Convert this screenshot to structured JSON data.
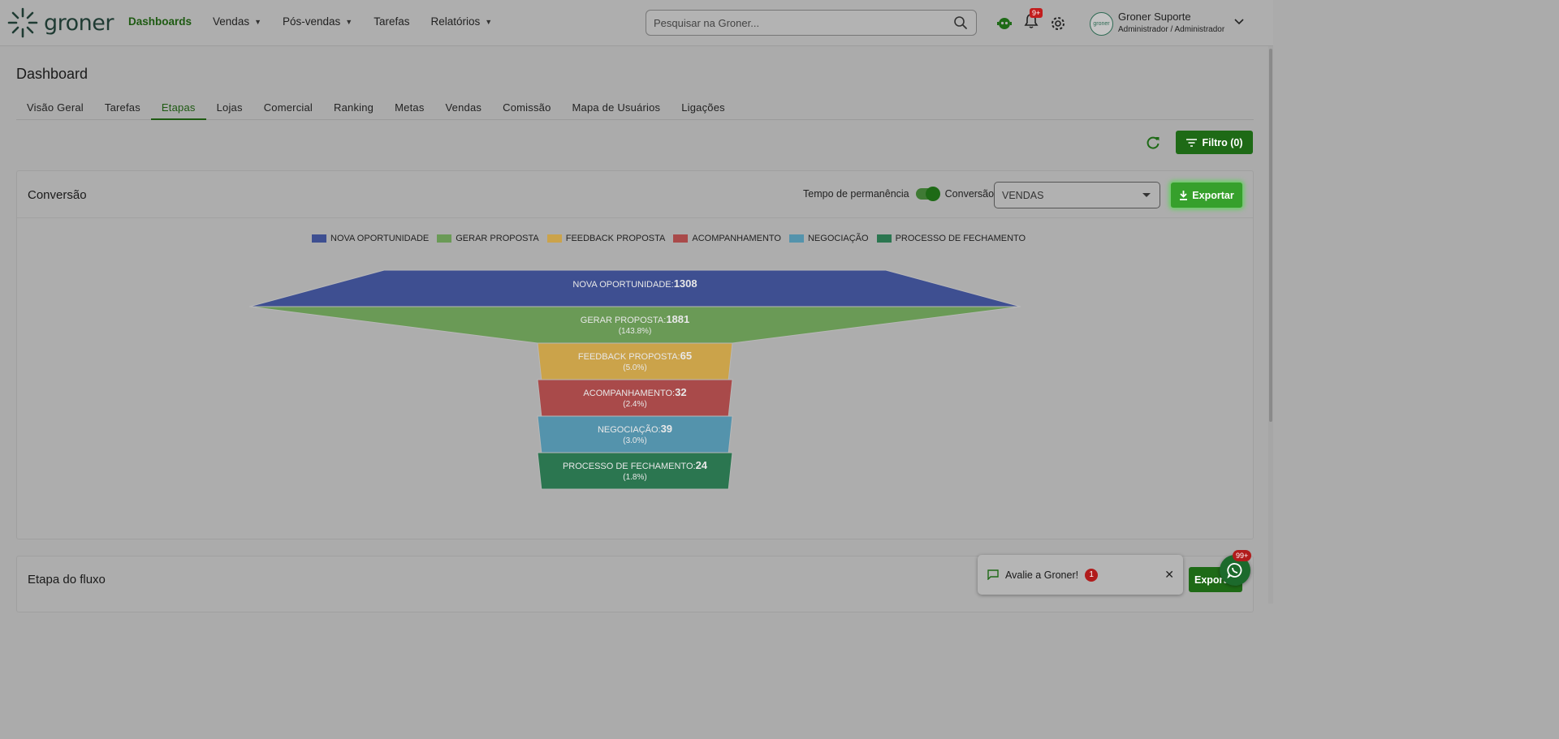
{
  "header": {
    "logo_text": "groner",
    "nav": [
      {
        "label": "Dashboards",
        "active": true,
        "dropdown": false
      },
      {
        "label": "Vendas",
        "active": false,
        "dropdown": true
      },
      {
        "label": "Pós-vendas",
        "active": false,
        "dropdown": true
      },
      {
        "label": "Tarefas",
        "active": false,
        "dropdown": false
      },
      {
        "label": "Relatórios",
        "active": false,
        "dropdown": true
      }
    ],
    "search_placeholder": "Pesquisar na Groner...",
    "notification_badge": "9+",
    "user_name": "Groner Suporte",
    "user_role": "Administrador / Administrador",
    "avatar_text": "groner"
  },
  "page": {
    "title": "Dashboard",
    "tabs": [
      "Visão Geral",
      "Tarefas",
      "Etapas",
      "Lojas",
      "Comercial",
      "Ranking",
      "Metas",
      "Vendas",
      "Comissão",
      "Mapa de Usuários",
      "Ligações"
    ],
    "active_tab": "Etapas",
    "filter_label": "Filtro (0)"
  },
  "conversion_card": {
    "title": "Conversão",
    "toggle_left_label": "Tempo de permanência",
    "toggle_right_label": "Conversão",
    "select_value": "VENDAS",
    "export_label": "Exportar"
  },
  "chart_data": {
    "type": "funnel",
    "stages": [
      {
        "name": "NOVA OPORTUNIDADE",
        "value": 1308,
        "percent": "",
        "color": "#3e4f91"
      },
      {
        "name": "GERAR PROPOSTA",
        "value": 1881,
        "percent": "(143.8%)",
        "color": "#6a9a56"
      },
      {
        "name": "FEEDBACK PROPOSTA",
        "value": 65,
        "percent": "(5.0%)",
        "color": "#cba34a"
      },
      {
        "name": "ACOMPANHAMENTO",
        "value": 32,
        "percent": "(2.4%)",
        "color": "#a94a4a"
      },
      {
        "name": "NEGOCIAÇÃO",
        "value": 39,
        "percent": "(3.0%)",
        "color": "#5493ac"
      },
      {
        "name": "PROCESSO DE FECHAMENTO",
        "value": 24,
        "percent": "(1.8%)",
        "color": "#2b7650"
      }
    ],
    "legend_position": "top-center"
  },
  "flow_card": {
    "title": "Etapa do fluxo",
    "export_label": "Exportar"
  },
  "toast": {
    "text": "Avalie a Groner!",
    "count": "1"
  },
  "whatsapp_badge": "99+",
  "colors": {
    "brand_green": "#1e6a16",
    "accent_green": "#36a02c",
    "badge_red": "#c21d1d"
  }
}
